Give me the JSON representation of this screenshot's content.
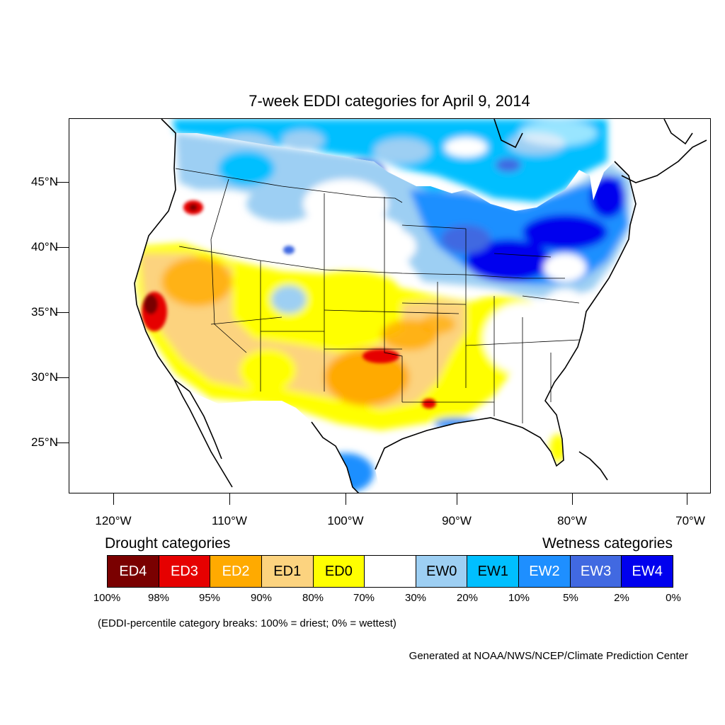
{
  "title": "7-week EDDI categories for April 9, 2014",
  "lat_labels": [
    "45°N",
    "40°N",
    "35°N",
    "30°N",
    "25°N"
  ],
  "lon_labels": [
    "120°W",
    "110°W",
    "100°W",
    "90°W",
    "80°W",
    "70°W"
  ],
  "legend": {
    "drought_title": "Drought categories",
    "wetness_title": "Wetness categories",
    "categories": [
      {
        "label": "ED4",
        "color": "#7a0000",
        "text_color": "#ffffff"
      },
      {
        "label": "ED3",
        "color": "#e60000",
        "text_color": "#ffffff"
      },
      {
        "label": "ED2",
        "color": "#ffaa00",
        "text_color": "#ffffff"
      },
      {
        "label": "ED1",
        "color": "#fcd37f",
        "text_color": "#000000"
      },
      {
        "label": "ED0",
        "color": "#ffff00",
        "text_color": "#000000"
      },
      {
        "label": "",
        "color": "#ffffff",
        "text_color": "#000000"
      },
      {
        "label": "EW0",
        "color": "#9dcff3",
        "text_color": "#000000"
      },
      {
        "label": "EW1",
        "color": "#00bfff",
        "text_color": "#000000"
      },
      {
        "label": "EW2",
        "color": "#1e8fff",
        "text_color": "#ffffff"
      },
      {
        "label": "EW3",
        "color": "#4169e1",
        "text_color": "#ffffff"
      },
      {
        "label": "EW4",
        "color": "#0000ee",
        "text_color": "#ffffff"
      }
    ],
    "percentile_breaks": [
      "100%",
      "98%",
      "95%",
      "90%",
      "80%",
      "70%",
      "30%",
      "20%",
      "10%",
      "5%",
      "2%",
      "0%"
    ]
  },
  "note": "(EDDI-percentile category breaks: 100% = driest; 0% = wettest)",
  "credit": "Generated at NOAA/NWS/NCEP/Climate Prediction Center"
}
